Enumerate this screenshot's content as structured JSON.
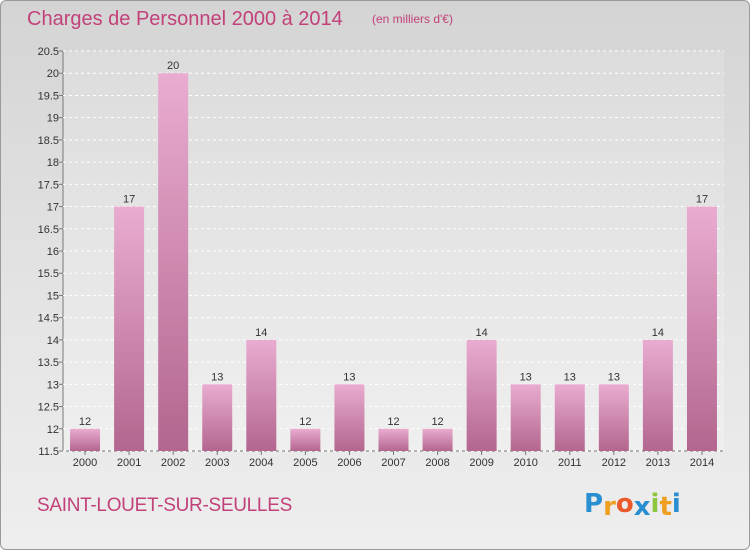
{
  "chart_data": {
    "type": "bar",
    "title": "Charges de Personnel 2000 à 2014",
    "subtitle": "(en milliers d'€)",
    "categories": [
      "2000",
      "2001",
      "2002",
      "2003",
      "2004",
      "2005",
      "2006",
      "2007",
      "2008",
      "2009",
      "2010",
      "2011",
      "2012",
      "2013",
      "2014"
    ],
    "values": [
      12,
      17,
      20,
      13,
      14,
      12,
      13,
      12,
      12,
      14,
      13,
      13,
      13,
      14,
      17
    ],
    "ylim": [
      11.5,
      20.5
    ],
    "yticks": [
      "11.5",
      "12",
      "12.5",
      "13",
      "13.5",
      "14",
      "14.5",
      "15",
      "15.5",
      "16",
      "16.5",
      "17",
      "17.5",
      "18",
      "18.5",
      "19",
      "19.5",
      "20",
      "20.5"
    ],
    "grid": true,
    "bar_color": "#d98cb8"
  },
  "footer": {
    "town": "SAINT-LOUET-SUR-SEULLES",
    "logo_letters": [
      "P",
      "r",
      "o",
      "x",
      "i",
      "t",
      "i"
    ],
    "logo_colors": [
      "#2a8fd1",
      "#f0a020",
      "#ea5a2a",
      "#2a8fd1",
      "#8cc63f",
      "#f0a020",
      "#2a8fd1"
    ]
  }
}
